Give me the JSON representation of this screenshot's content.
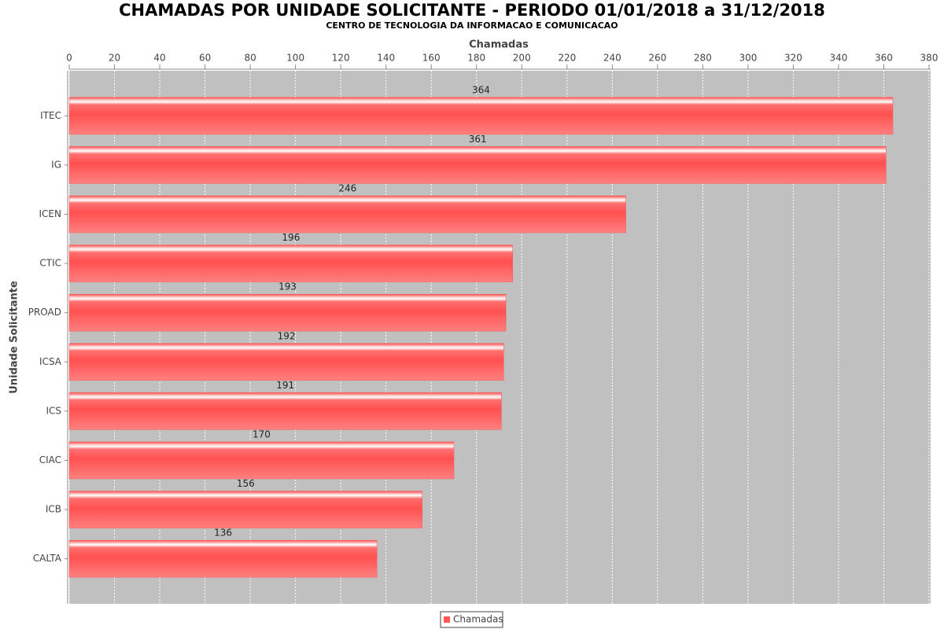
{
  "chart_data": {
    "type": "hbar",
    "title": "CHAMADAS POR UNIDADE SOLICITANTE - PERIODO 01/01/2018 a 31/12/2018",
    "subtitle": "CENTRO DE TECNOLOGIA DA INFORMACAO E COMUNICACAO",
    "x_label": "Chamadas",
    "y_label": "Unidade Solicitante",
    "categories": [
      "ITEC",
      "IG",
      "ICEN",
      "CTIC",
      "PROAD",
      "ICSA",
      "ICS",
      "CIAC",
      "ICB",
      "CALTA"
    ],
    "series": [
      {
        "name": "Chamadas",
        "color": "#ff5555",
        "values": [
          364,
          361,
          246,
          196,
          193,
          192,
          191,
          170,
          156,
          136
        ]
      }
    ],
    "xlim": [
      0,
      380
    ],
    "xticks": [
      0,
      20,
      40,
      60,
      80,
      100,
      120,
      140,
      160,
      180,
      200,
      220,
      240,
      260,
      280,
      300,
      320,
      340,
      360,
      380
    ],
    "grid": true,
    "legend": "bottom"
  }
}
